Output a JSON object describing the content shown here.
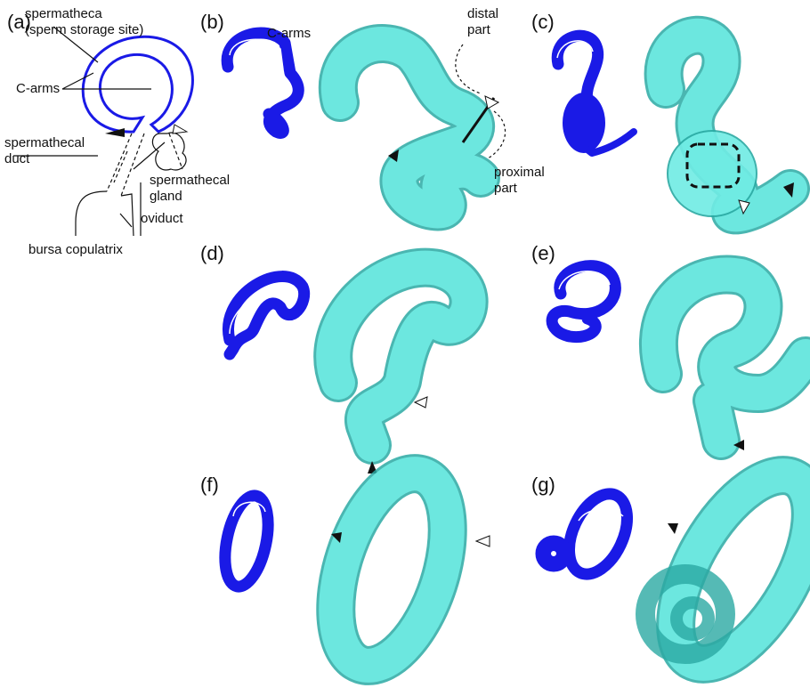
{
  "panels": {
    "a": {
      "label": "(a)",
      "annotations": [
        "spermatheca",
        "(sperm storage site)",
        "C-arms",
        "spermathecal",
        "duct",
        "spermathecal",
        "gland",
        "oviduct",
        "bursa copulatrix"
      ]
    },
    "b": {
      "label": "(b)",
      "annotations": [
        "C-arms",
        "distal",
        "part",
        "proximal",
        "part"
      ]
    },
    "c": {
      "label": "(c)"
    },
    "d": {
      "label": "(d)"
    },
    "e": {
      "label": "(e)"
    },
    "f": {
      "label": "(f)"
    },
    "g": {
      "label": "(g)"
    }
  }
}
